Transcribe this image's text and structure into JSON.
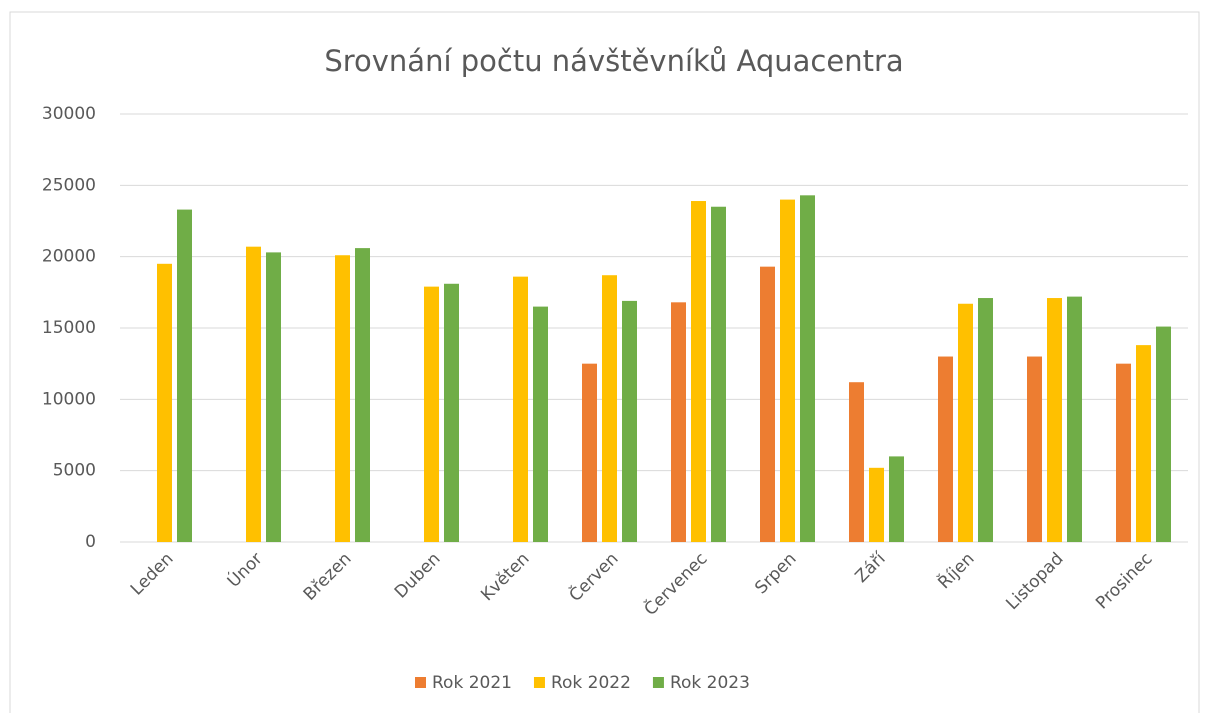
{
  "chart_data": {
    "type": "bar",
    "title": "Srovnání počtu návštěvníků Aquacentra",
    "categories": [
      "Leden",
      "Únor",
      "Březen",
      "Duben",
      "Květen",
      "Červen",
      "Červenec",
      "Srpen",
      "Září",
      "Říjen",
      "Listopad",
      "Prosinec"
    ],
    "series": [
      {
        "name": "Rok 2021",
        "color": "#ed7d31",
        "values": [
          null,
          null,
          null,
          null,
          null,
          12500,
          16800,
          19300,
          11200,
          13000,
          13000,
          12500
        ]
      },
      {
        "name": "Rok 2022",
        "color": "#ffc000",
        "values": [
          19500,
          20700,
          20100,
          17900,
          18600,
          18700,
          23900,
          24000,
          5200,
          16700,
          17100,
          13800
        ]
      },
      {
        "name": "Rok 2023",
        "color": "#70ad47",
        "values": [
          23300,
          20300,
          20600,
          18100,
          16500,
          16900,
          23500,
          24300,
          6000,
          17100,
          17200,
          15100
        ]
      }
    ],
    "ylim": [
      0,
      30000
    ],
    "yticks": [
      0,
      5000,
      10000,
      15000,
      20000,
      25000,
      30000
    ],
    "grid": true,
    "legend": "bottom"
  }
}
